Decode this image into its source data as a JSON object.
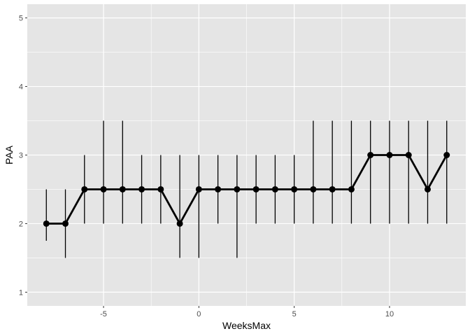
{
  "chart_data": {
    "type": "line",
    "xlabel": "WeeksMax",
    "ylabel": "PAA",
    "xlim": [
      -9,
      14
    ],
    "ylim": [
      0.8,
      5.2
    ],
    "x_ticks": [
      -5,
      0,
      5,
      10
    ],
    "y_ticks": [
      1,
      2,
      3,
      4,
      5
    ],
    "grid": true,
    "panel_background": "#e5e5e5",
    "grid_color": "#ffffff",
    "series_color": "#000000",
    "points": [
      {
        "x": -8,
        "y": 2.0,
        "lo": 1.75,
        "hi": 2.5
      },
      {
        "x": -7,
        "y": 2.0,
        "lo": 1.5,
        "hi": 2.5
      },
      {
        "x": -6,
        "y": 2.5,
        "lo": 2.0,
        "hi": 3.0
      },
      {
        "x": -5,
        "y": 2.5,
        "lo": 2.0,
        "hi": 3.5
      },
      {
        "x": -4,
        "y": 2.5,
        "lo": 2.0,
        "hi": 3.5
      },
      {
        "x": -3,
        "y": 2.5,
        "lo": 2.0,
        "hi": 3.0
      },
      {
        "x": -2,
        "y": 2.5,
        "lo": 2.0,
        "hi": 3.0
      },
      {
        "x": -1,
        "y": 2.0,
        "lo": 1.5,
        "hi": 3.0
      },
      {
        "x": 0,
        "y": 2.5,
        "lo": 1.5,
        "hi": 3.0
      },
      {
        "x": 1,
        "y": 2.5,
        "lo": 2.0,
        "hi": 3.0
      },
      {
        "x": 2,
        "y": 2.5,
        "lo": 1.5,
        "hi": 3.0
      },
      {
        "x": 3,
        "y": 2.5,
        "lo": 2.0,
        "hi": 3.0
      },
      {
        "x": 4,
        "y": 2.5,
        "lo": 2.0,
        "hi": 3.0
      },
      {
        "x": 5,
        "y": 2.5,
        "lo": 2.0,
        "hi": 3.0
      },
      {
        "x": 6,
        "y": 2.5,
        "lo": 2.0,
        "hi": 3.5
      },
      {
        "x": 7,
        "y": 2.5,
        "lo": 2.0,
        "hi": 3.5
      },
      {
        "x": 8,
        "y": 2.5,
        "lo": 2.0,
        "hi": 3.5
      },
      {
        "x": 9,
        "y": 3.0,
        "lo": 2.0,
        "hi": 3.5
      },
      {
        "x": 10,
        "y": 3.0,
        "lo": 2.0,
        "hi": 3.5
      },
      {
        "x": 11,
        "y": 3.0,
        "lo": 2.0,
        "hi": 3.5
      },
      {
        "x": 12,
        "y": 2.5,
        "lo": 2.0,
        "hi": 3.5
      },
      {
        "x": 13,
        "y": 3.0,
        "lo": 2.0,
        "hi": 3.5
      }
    ]
  }
}
